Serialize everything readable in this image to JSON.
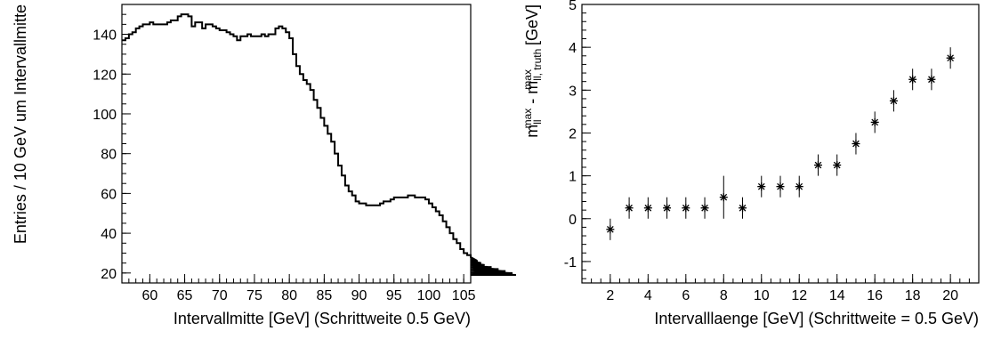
{
  "chart_data": [
    {
      "type": "line",
      "style": "step-histogram",
      "xlabel": "Intervallmitte [GeV] (Schrittweite 0.5 GeV)",
      "ylabel": "Entries / 10 GeV um Intervallmitte",
      "xlim": [
        56,
        106
      ],
      "ylim": [
        15,
        155
      ],
      "xticks": [
        60,
        65,
        70,
        75,
        80,
        85,
        90,
        95,
        100,
        105
      ],
      "yticks": [
        20,
        40,
        60,
        80,
        100,
        120,
        140
      ],
      "grid": false,
      "x_start": 56,
      "bin_width": 0.5,
      "values": [
        137,
        138,
        140,
        141,
        143,
        144,
        145,
        145,
        146,
        145,
        145,
        145,
        145,
        146,
        147,
        147,
        149,
        150,
        150,
        149,
        144,
        146,
        146,
        143,
        145,
        145,
        144,
        143,
        142,
        142,
        141,
        140,
        139,
        137,
        139,
        139,
        140,
        139,
        139,
        139,
        140,
        139,
        140,
        140,
        143,
        144,
        143,
        141,
        138,
        130,
        124,
        120,
        117,
        115,
        112,
        107,
        103,
        98,
        94,
        90,
        86,
        80,
        74,
        69,
        64,
        61,
        59,
        56,
        55,
        55,
        54,
        54,
        54,
        54,
        55,
        56,
        56,
        57,
        58,
        58,
        58,
        58,
        59,
        59,
        58,
        58,
        58,
        57,
        55,
        53,
        51,
        49,
        46,
        43,
        40,
        37,
        35,
        32,
        30,
        29,
        28,
        27,
        26,
        25,
        24,
        23,
        23,
        22,
        22,
        21,
        21,
        20,
        20,
        19
      ]
    },
    {
      "type": "scatter",
      "style": "star-markers-with-error-bars",
      "xlabel": "Intervalllaenge [GeV] (Schrittweite = 0.5 GeV)",
      "ylabel_main": "m",
      "ylabel_sub1": "ll",
      "ylabel_sup1": "max",
      "ylabel_minus": " - m",
      "ylabel_sub2": "ll, truth",
      "ylabel_sup2": "max",
      "ylabel_unit": " [GeV]",
      "xlim": [
        0.5,
        21.5
      ],
      "ylim": [
        -1.5,
        5
      ],
      "xticks": [
        2,
        4,
        6,
        8,
        10,
        12,
        14,
        16,
        18,
        20
      ],
      "yticks": [
        -1,
        0,
        1,
        2,
        3,
        4,
        5
      ],
      "grid": false,
      "x": [
        2,
        3,
        4,
        5,
        6,
        7,
        8,
        9,
        10,
        11,
        12,
        13,
        14,
        15,
        16,
        17,
        18,
        19,
        20
      ],
      "y": [
        -0.25,
        0.25,
        0.25,
        0.25,
        0.25,
        0.25,
        0.5,
        0.25,
        0.75,
        0.75,
        0.75,
        1.25,
        1.25,
        1.75,
        2.25,
        2.75,
        3.25,
        3.25,
        3.75
      ],
      "err": [
        0.25,
        0.25,
        0.25,
        0.25,
        0.25,
        0.25,
        0.5,
        0.25,
        0.25,
        0.25,
        0.25,
        0.25,
        0.25,
        0.25,
        0.25,
        0.25,
        0.25,
        0.25,
        0.25
      ]
    }
  ]
}
